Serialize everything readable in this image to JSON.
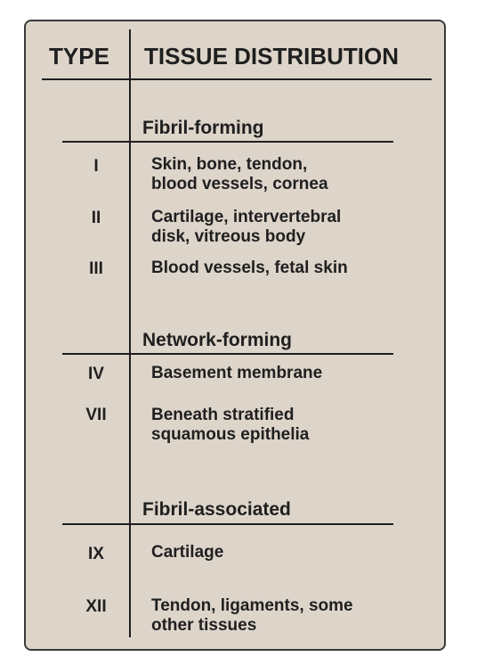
{
  "header": {
    "type_label": "TYPE",
    "distribution_label": "TISSUE DISTRIBUTION"
  },
  "sections": [
    {
      "title": "Fibril-forming",
      "rows": [
        {
          "type": "I",
          "distribution": "Skin, bone, tendon,\nblood vessels, cornea"
        },
        {
          "type": "II",
          "distribution": "Cartilage, intervertebral\ndisk, vitreous body"
        },
        {
          "type": "III",
          "distribution": "Blood vessels, fetal skin"
        }
      ]
    },
    {
      "title": "Network-forming",
      "rows": [
        {
          "type": "IV",
          "distribution": "Basement membrane"
        },
        {
          "type": "VII",
          "distribution": "Beneath stratified\nsquamous epithelia"
        }
      ]
    },
    {
      "title": "Fibril-associated",
      "rows": [
        {
          "type": "IX",
          "distribution": "Cartilage"
        },
        {
          "type": "XII",
          "distribution": "Tendon, ligaments, some\nother tissues"
        }
      ]
    }
  ]
}
